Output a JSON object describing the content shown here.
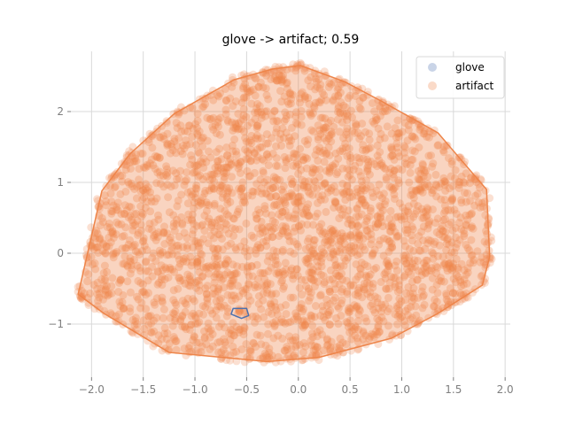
{
  "chart_data": {
    "type": "scatter",
    "title": "glove -> artifact; 0.59",
    "xlim": [
      -2.2,
      2.05
    ],
    "ylim": [
      -1.75,
      2.85
    ],
    "x_ticks": [
      -2.0,
      -1.5,
      -1.0,
      -0.5,
      0.0,
      0.5,
      1.0,
      1.5,
      2.0
    ],
    "x_tick_labels": [
      "−2.0",
      "−1.5",
      "−1.0",
      "−0.5",
      "0.0",
      "0.5",
      "1.0",
      "1.5",
      "2.0"
    ],
    "y_ticks": [
      -1,
      0,
      1,
      2
    ],
    "y_tick_labels": [
      "−1",
      "0",
      "1",
      "2"
    ],
    "grid": true,
    "legend_position": "top-right",
    "series": [
      {
        "name": "glove",
        "color": "#4c72b0",
        "hull": [
          [
            -0.63,
            -0.78
          ],
          [
            -0.5,
            -0.78
          ],
          [
            -0.48,
            -0.88
          ],
          [
            -0.55,
            -0.92
          ],
          [
            -0.65,
            -0.86
          ]
        ]
      },
      {
        "name": "artifact",
        "color": "#ee854a",
        "hull": [
          [
            0.02,
            2.65
          ],
          [
            -0.25,
            2.6
          ],
          [
            -0.62,
            2.45
          ],
          [
            -1.2,
            1.97
          ],
          [
            -1.63,
            1.4
          ],
          [
            -1.9,
            0.88
          ],
          [
            -2.13,
            -0.58
          ],
          [
            -1.88,
            -0.85
          ],
          [
            -1.25,
            -1.4
          ],
          [
            -0.3,
            -1.53
          ],
          [
            0.2,
            -1.47
          ],
          [
            0.9,
            -1.2
          ],
          [
            1.35,
            -0.85
          ],
          [
            1.78,
            -0.45
          ],
          [
            1.85,
            -0.05
          ],
          [
            1.82,
            0.9
          ],
          [
            1.35,
            1.7
          ],
          [
            0.8,
            2.15
          ],
          [
            0.45,
            2.42
          ]
        ]
      }
    ]
  }
}
